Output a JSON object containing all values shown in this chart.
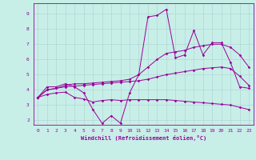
{
  "xlabel": "Windchill (Refroidissement éolien,°C)",
  "xlim": [
    -0.5,
    23.5
  ],
  "ylim": [
    1.7,
    9.7
  ],
  "xticks": [
    0,
    1,
    2,
    3,
    4,
    5,
    6,
    7,
    8,
    9,
    10,
    11,
    12,
    13,
    14,
    15,
    16,
    17,
    18,
    19,
    20,
    21,
    22,
    23
  ],
  "yticks": [
    2,
    3,
    4,
    5,
    6,
    7,
    8,
    9
  ],
  "bg_color": "#c8eee8",
  "line_color": "#990099",
  "grid_color": "#b0d8d4",
  "series": [
    {
      "x": [
        0,
        1,
        2,
        3,
        4,
        5,
        6,
        7,
        8,
        9,
        10,
        11,
        12,
        13,
        14,
        15,
        16,
        17,
        18,
        19,
        20,
        21,
        22,
        23
      ],
      "y": [
        3.5,
        4.2,
        4.2,
        4.4,
        4.2,
        3.8,
        2.7,
        1.8,
        2.3,
        1.8,
        3.8,
        5.0,
        8.8,
        8.9,
        9.3,
        6.1,
        6.3,
        7.9,
        6.3,
        7.1,
        7.1,
        5.8,
        4.2,
        4.1
      ]
    },
    {
      "x": [
        0,
        1,
        2,
        3,
        4,
        5,
        6,
        7,
        8,
        9,
        10,
        11,
        12,
        13,
        14,
        15,
        16,
        17,
        18,
        19,
        20,
        21,
        22,
        23
      ],
      "y": [
        3.5,
        4.0,
        4.1,
        4.3,
        4.4,
        4.4,
        4.45,
        4.5,
        4.55,
        4.6,
        4.7,
        5.0,
        5.5,
        6.0,
        6.4,
        6.5,
        6.6,
        6.8,
        6.9,
        7.0,
        7.0,
        6.8,
        6.3,
        5.5
      ]
    },
    {
      "x": [
        0,
        1,
        2,
        3,
        4,
        5,
        6,
        7,
        8,
        9,
        10,
        11,
        12,
        13,
        14,
        15,
        16,
        17,
        18,
        19,
        20,
        21,
        22,
        23
      ],
      "y": [
        3.5,
        4.0,
        4.1,
        4.2,
        4.25,
        4.3,
        4.35,
        4.4,
        4.45,
        4.5,
        4.55,
        4.6,
        4.7,
        4.85,
        5.0,
        5.1,
        5.2,
        5.3,
        5.4,
        5.45,
        5.5,
        5.4,
        4.9,
        4.3
      ]
    },
    {
      "x": [
        0,
        1,
        2,
        3,
        4,
        5,
        6,
        7,
        8,
        9,
        10,
        11,
        12,
        13,
        14,
        15,
        16,
        17,
        18,
        19,
        20,
        21,
        22,
        23
      ],
      "y": [
        3.5,
        3.7,
        3.8,
        3.85,
        3.5,
        3.4,
        3.2,
        3.3,
        3.35,
        3.3,
        3.35,
        3.35,
        3.35,
        3.35,
        3.35,
        3.3,
        3.25,
        3.2,
        3.15,
        3.1,
        3.05,
        3.0,
        2.85,
        2.7
      ]
    }
  ]
}
